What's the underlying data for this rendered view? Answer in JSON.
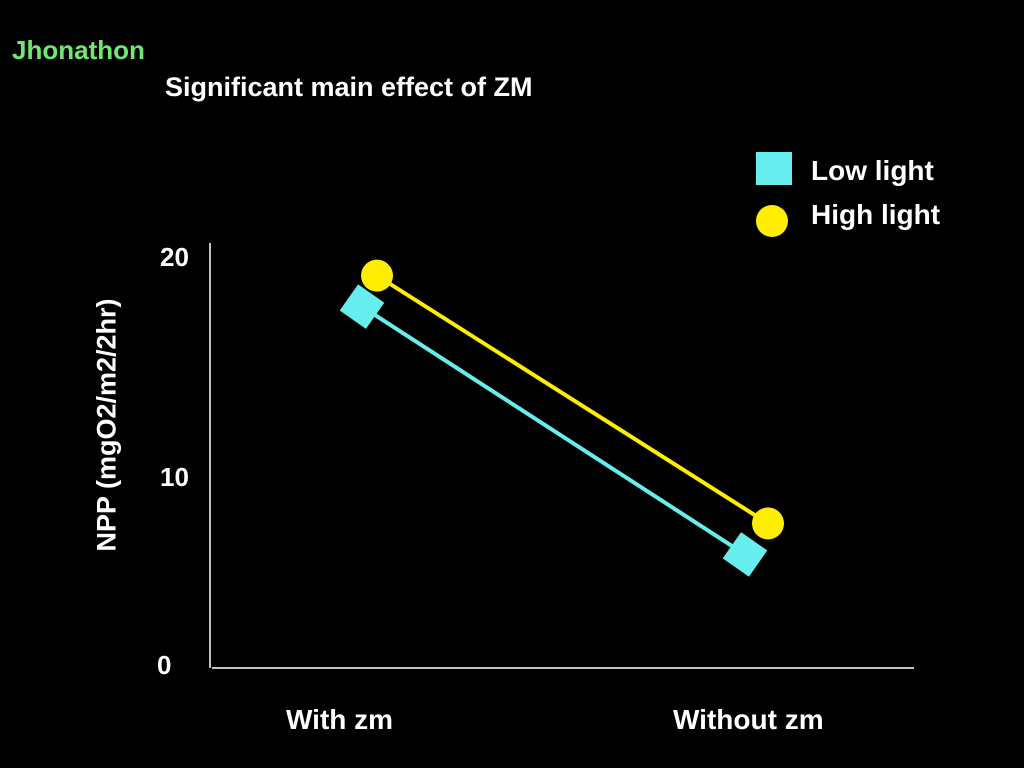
{
  "header": {
    "author": "Jhonathon"
  },
  "chart_data": {
    "type": "line",
    "title": "Significant main effect of ZM",
    "xlabel": "",
    "ylabel": "NPP (mgO2/m2/2hr)",
    "categories": [
      "With zm",
      "Without zm"
    ],
    "yticks": [
      0,
      10,
      20
    ],
    "ylim": [
      0,
      20
    ],
    "series": [
      {
        "name": "Low light",
        "values": [
          17.5,
          5.5
        ],
        "color": "#66eeee",
        "marker": "square"
      },
      {
        "name": "High light",
        "values": [
          19.0,
          7.0
        ],
        "color": "#ffee00",
        "marker": "circle"
      }
    ],
    "legend_position": "top-right",
    "grid": false
  }
}
